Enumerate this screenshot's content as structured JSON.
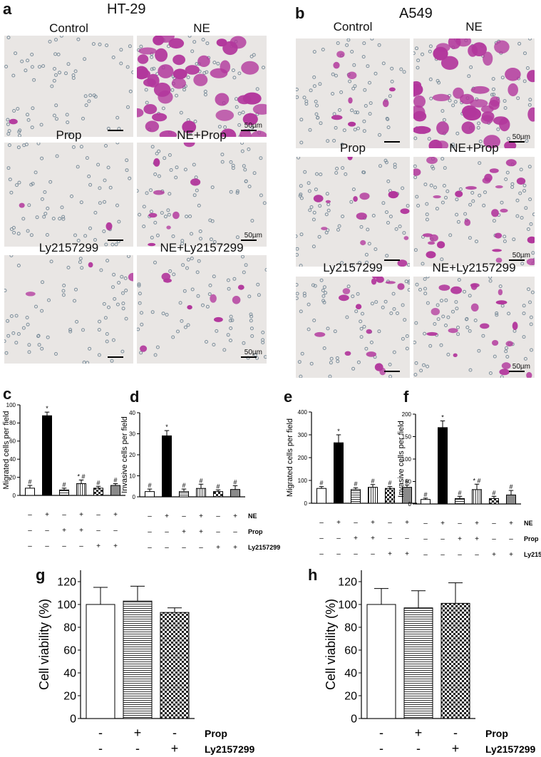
{
  "panels": {
    "a": "a",
    "b": "b",
    "c": "c",
    "d": "d",
    "e": "e",
    "f": "f",
    "g": "g",
    "h": "h"
  },
  "column_titles": {
    "left": "HT-29",
    "right": "A549"
  },
  "micrographs": {
    "left": [
      {
        "label": "Control",
        "scale": ""
      },
      {
        "label": "NE",
        "scale": "50µm"
      },
      {
        "label": "Prop",
        "scale": ""
      },
      {
        "label": "NE+Prop",
        "scale": "50µm"
      },
      {
        "label": "Ly2157299",
        "scale": ""
      },
      {
        "label": "NE+Ly2157299",
        "scale": "50µm"
      }
    ],
    "right": [
      {
        "label": "Control",
        "scale": ""
      },
      {
        "label": "NE",
        "scale": "50µm"
      },
      {
        "label": "Prop",
        "scale": ""
      },
      {
        "label": "NE+Prop",
        "scale": "50µm"
      },
      {
        "label": "Ly2157299",
        "scale": ""
      },
      {
        "label": "NE+Ly2157299",
        "scale": "50µm"
      }
    ],
    "colors": {
      "background": "#e9e6e4",
      "stain": "#b2379c",
      "pore": "#7c8e9b"
    }
  },
  "treatment_table_6": {
    "rows": [
      "NE",
      "Prop",
      "Ly2157299"
    ],
    "signs": [
      [
        "–",
        "+",
        "–",
        "+",
        "–",
        "+"
      ],
      [
        "–",
        "–",
        "+",
        "+",
        "–",
        "–"
      ],
      [
        "–",
        "–",
        "–",
        "–",
        "+",
        "+"
      ]
    ]
  },
  "treatment_table_3": {
    "rows": [
      "Prop",
      "Ly2157299"
    ],
    "signs": [
      [
        "-",
        "+",
        "-"
      ],
      [
        "-",
        "-",
        "+"
      ]
    ]
  },
  "chart_data": [
    {
      "panel": "c",
      "type": "bar",
      "ylabel": "Migrated cells per field",
      "ylim": [
        0,
        100
      ],
      "yticks": [
        "0",
        "20",
        "40",
        "60",
        "80",
        "100"
      ],
      "values": [
        8,
        88,
        6,
        13,
        8,
        11
      ],
      "errors": [
        3,
        4,
        2,
        4,
        2,
        2
      ],
      "marks": [
        "#",
        "*",
        "#",
        "* #",
        "#",
        "#"
      ],
      "fills": [
        "white",
        "black",
        "hlines",
        "vlines",
        "check",
        "gray"
      ]
    },
    {
      "panel": "d",
      "type": "bar",
      "ylabel": "Invasive cells per field",
      "ylim": [
        0,
        40
      ],
      "yticks": [
        "0",
        "10",
        "20",
        "30",
        "40"
      ],
      "values": [
        2.5,
        29,
        2.5,
        4,
        2.5,
        3.5
      ],
      "errors": [
        1.2,
        2.5,
        1.2,
        2,
        0.8,
        1.8
      ],
      "marks": [
        "#",
        "*",
        "#",
        "#",
        "#",
        "#"
      ],
      "fills": [
        "white",
        "black",
        "hlines",
        "vlines",
        "check",
        "gray"
      ]
    },
    {
      "panel": "e",
      "type": "bar",
      "ylabel": "Migrated cells per field",
      "ylim": [
        0,
        400
      ],
      "yticks": [
        "0",
        "100",
        "200",
        "300",
        "400"
      ],
      "values": [
        65,
        265,
        60,
        70,
        65,
        70
      ],
      "errors": [
        8,
        35,
        8,
        12,
        8,
        10
      ],
      "marks": [
        "#",
        "*",
        "#",
        "#",
        "#",
        "#"
      ],
      "fills": [
        "white",
        "black",
        "hlines",
        "vlines",
        "check",
        "gray"
      ]
    },
    {
      "panel": "f",
      "type": "bar",
      "ylabel": "Invasive cells per field",
      "ylim": [
        0,
        200
      ],
      "yticks": [
        "0",
        "50",
        "100",
        "150",
        "200"
      ],
      "values": [
        10,
        170,
        12,
        32,
        12,
        20
      ],
      "errors": [
        3,
        15,
        5,
        12,
        5,
        10
      ],
      "marks": [
        "#",
        "*",
        "#",
        "* #",
        "#",
        "#"
      ],
      "fills": [
        "white",
        "black",
        "hlines",
        "vlines",
        "check",
        "gray"
      ]
    },
    {
      "panel": "g",
      "type": "bar",
      "ylabel": "Cell viability (%)",
      "ylim": [
        0,
        130
      ],
      "yticks": [
        "0",
        "20",
        "40",
        "60",
        "80",
        "100",
        "120"
      ],
      "values": [
        100,
        103,
        93
      ],
      "errors": [
        15,
        13,
        4
      ],
      "fills": [
        "white",
        "hlines",
        "check"
      ]
    },
    {
      "panel": "h",
      "type": "bar",
      "ylabel": "Cell viability (%)",
      "ylim": [
        0,
        130
      ],
      "yticks": [
        "0",
        "20",
        "40",
        "60",
        "80",
        "100",
        "120"
      ],
      "values": [
        100,
        97,
        101
      ],
      "errors": [
        14,
        15,
        18
      ],
      "fills": [
        "white",
        "hlines",
        "check"
      ]
    }
  ]
}
